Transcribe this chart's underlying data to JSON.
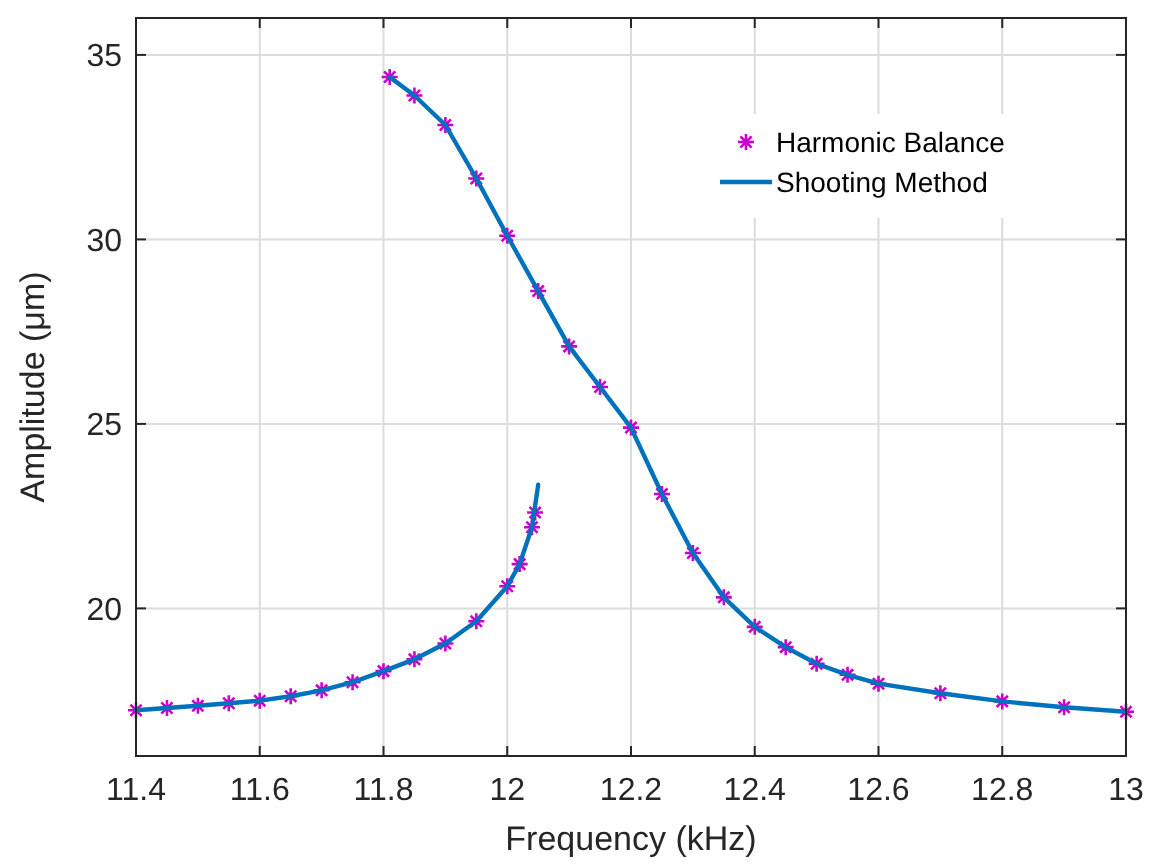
{
  "chart_data": {
    "type": "line",
    "xlabel": "Frequency (kHz)",
    "ylabel": "Amplitude (μm)",
    "xlim": [
      11.4,
      13
    ],
    "xticks": [
      11.4,
      11.6,
      11.8,
      12,
      12.2,
      12.4,
      12.6,
      12.8,
      13
    ],
    "ylim": [
      16,
      36
    ],
    "yticks": [
      20,
      25,
      30,
      35
    ],
    "grid": true,
    "legend": "top right",
    "series": [
      {
        "name": "Harmonic Balance",
        "type": "scatter",
        "marker": "cross",
        "color": "#cc00cc",
        "x": [
          11.4,
          11.45,
          11.5,
          11.55,
          11.6,
          11.65,
          11.7,
          11.75,
          11.8,
          11.85,
          11.9,
          11.95,
          12.0,
          12.02,
          12.04,
          12.045,
          11.81,
          11.85,
          11.9,
          11.95,
          12.0,
          12.05,
          12.1,
          12.15,
          12.2,
          12.25,
          12.3,
          12.35,
          12.4,
          12.45,
          12.5,
          12.55,
          12.6,
          12.7,
          12.8,
          12.9,
          13.0
        ],
        "values": [
          17.24,
          17.3,
          17.36,
          17.43,
          17.5,
          17.62,
          17.78,
          18.0,
          18.3,
          18.62,
          19.05,
          19.65,
          20.6,
          21.2,
          22.2,
          22.6,
          34.4,
          33.9,
          33.1,
          31.65,
          30.1,
          28.6,
          27.1,
          26.0,
          24.9,
          23.1,
          21.5,
          20.3,
          19.5,
          18.95,
          18.5,
          18.2,
          17.96,
          17.7,
          17.48,
          17.32,
          17.2
        ]
      },
      {
        "name": "Shooting Method",
        "marker": "none",
        "line_style": "solid",
        "color": "#0072bd",
        "x": [
          11.4,
          11.45,
          11.5,
          11.55,
          11.6,
          11.65,
          11.7,
          11.75,
          11.8,
          11.85,
          11.9,
          11.95,
          12.0,
          12.02,
          12.04,
          12.05,
          null,
          11.81,
          11.85,
          11.9,
          11.95,
          12.0,
          12.05,
          12.1,
          12.15,
          12.2,
          12.25,
          12.3,
          12.35,
          12.4,
          12.45,
          12.5,
          12.55,
          12.6,
          12.7,
          12.8,
          12.9,
          13.0
        ],
        "values": [
          17.24,
          17.3,
          17.36,
          17.43,
          17.5,
          17.62,
          17.78,
          18.0,
          18.3,
          18.62,
          19.05,
          19.65,
          20.6,
          21.2,
          22.2,
          23.35,
          null,
          34.4,
          33.9,
          33.1,
          31.65,
          30.1,
          28.6,
          27.1,
          26.0,
          24.9,
          23.1,
          21.5,
          20.3,
          19.5,
          18.95,
          18.5,
          18.2,
          17.96,
          17.7,
          17.48,
          17.32,
          17.2
        ]
      }
    ]
  }
}
